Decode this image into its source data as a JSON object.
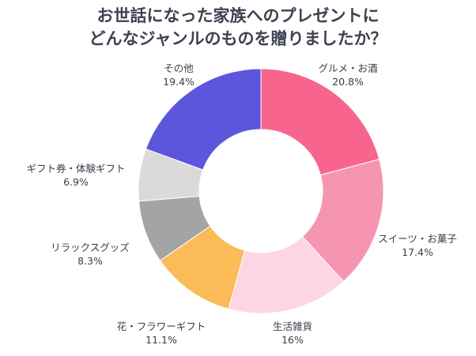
{
  "chart_data": {
    "type": "donut",
    "title_lines": [
      "お世話になった家族へのプレゼントに",
      "どんなジャンルのものを贈りましたか？"
    ],
    "unit": "%",
    "slices": [
      {
        "label": "グルメ・お酒",
        "value": 20.8,
        "value_label": "20.8%",
        "color": "#f7658f"
      },
      {
        "label": "スイーツ・お菓子",
        "value": 17.4,
        "value_label": "17.4%",
        "color": "#f595b2"
      },
      {
        "label": "生活雑貨",
        "value": 16,
        "value_label": "16%",
        "color": "#fdd5e3"
      },
      {
        "label": "花・フラワーギフト",
        "value": 11.1,
        "value_label": "11.1%",
        "color": "#fbbb56"
      },
      {
        "label": "リラックスグッズ",
        "value": 8.3,
        "value_label": "8.3%",
        "color": "#a4a4a4"
      },
      {
        "label": "ギフト券・体験ギフト",
        "value": 6.9,
        "value_label": "6.9%",
        "color": "#dadada"
      },
      {
        "label": "その他",
        "value": 19.4,
        "value_label": "19.4%",
        "color": "#5b56dc"
      }
    ],
    "legend": "none"
  }
}
